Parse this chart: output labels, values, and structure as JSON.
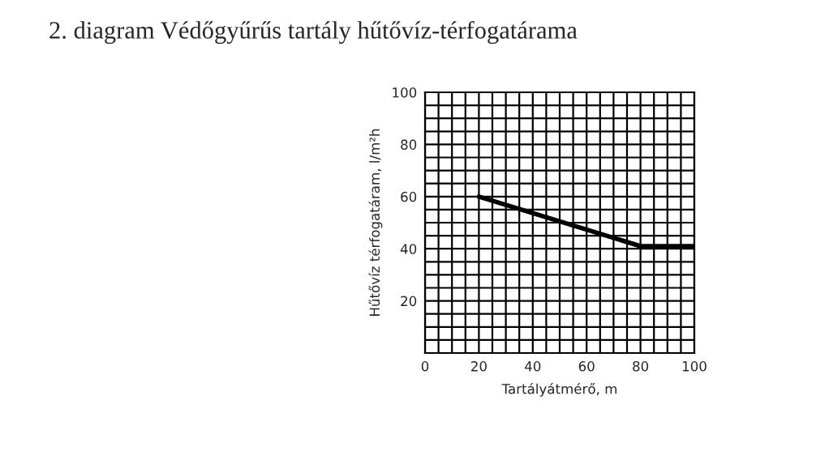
{
  "chart_data": {
    "type": "line",
    "title": "2. diagram Védőgyűrűs tartály hűtővíz-térfogatárama",
    "xlabel": "Tartályátmérő, m",
    "ylabel": "Hűtővíz térfogatáram, l/m²h",
    "x": [
      20,
      80,
      100
    ],
    "series": [
      {
        "color": "#000000",
        "values": [
          60,
          41,
          41
        ]
      }
    ],
    "xlim": [
      0,
      100
    ],
    "ylim": [
      0,
      100
    ],
    "xticks": [
      0,
      {
        "value": 5,
        "label": null
      },
      {
        "value": 10,
        "label": null
      },
      {
        "value": 15,
        "label": null
      },
      20,
      {
        "value": 25,
        "label": null
      },
      {
        "value": 30,
        "label": null
      },
      {
        "value": 35,
        "label": null
      },
      40,
      {
        "value": 45,
        "label": null
      },
      {
        "value": 50,
        "label": null
      },
      {
        "value": 55,
        "label": null
      },
      60,
      {
        "value": 65,
        "label": null
      },
      {
        "value": 70,
        "label": null
      },
      {
        "value": 75,
        "label": null
      },
      80,
      {
        "value": 85,
        "label": null
      },
      {
        "value": 90,
        "label": null
      },
      {
        "value": 95,
        "label": null
      },
      100
    ],
    "yticks": [
      {
        "value": 0,
        "label": null
      },
      {
        "value": 5,
        "label": null
      },
      {
        "value": 10,
        "label": null
      },
      {
        "value": 15,
        "label": null
      },
      20,
      {
        "value": 25,
        "label": null
      },
      {
        "value": 30,
        "label": null
      },
      {
        "value": 35,
        "label": null
      },
      40,
      {
        "value": 45,
        "label": null
      },
      {
        "value": 50,
        "label": null
      },
      {
        "value": 55,
        "label": null
      },
      60,
      {
        "value": 65,
        "label": null
      },
      {
        "value": 70,
        "label": null
      },
      {
        "value": 75,
        "label": null
      },
      80,
      {
        "value": 85,
        "label": null
      },
      {
        "value": 90,
        "label": null
      },
      {
        "value": 95,
        "label": null
      },
      100
    ],
    "grid": true,
    "marker": "none",
    "line_style": "solid"
  }
}
